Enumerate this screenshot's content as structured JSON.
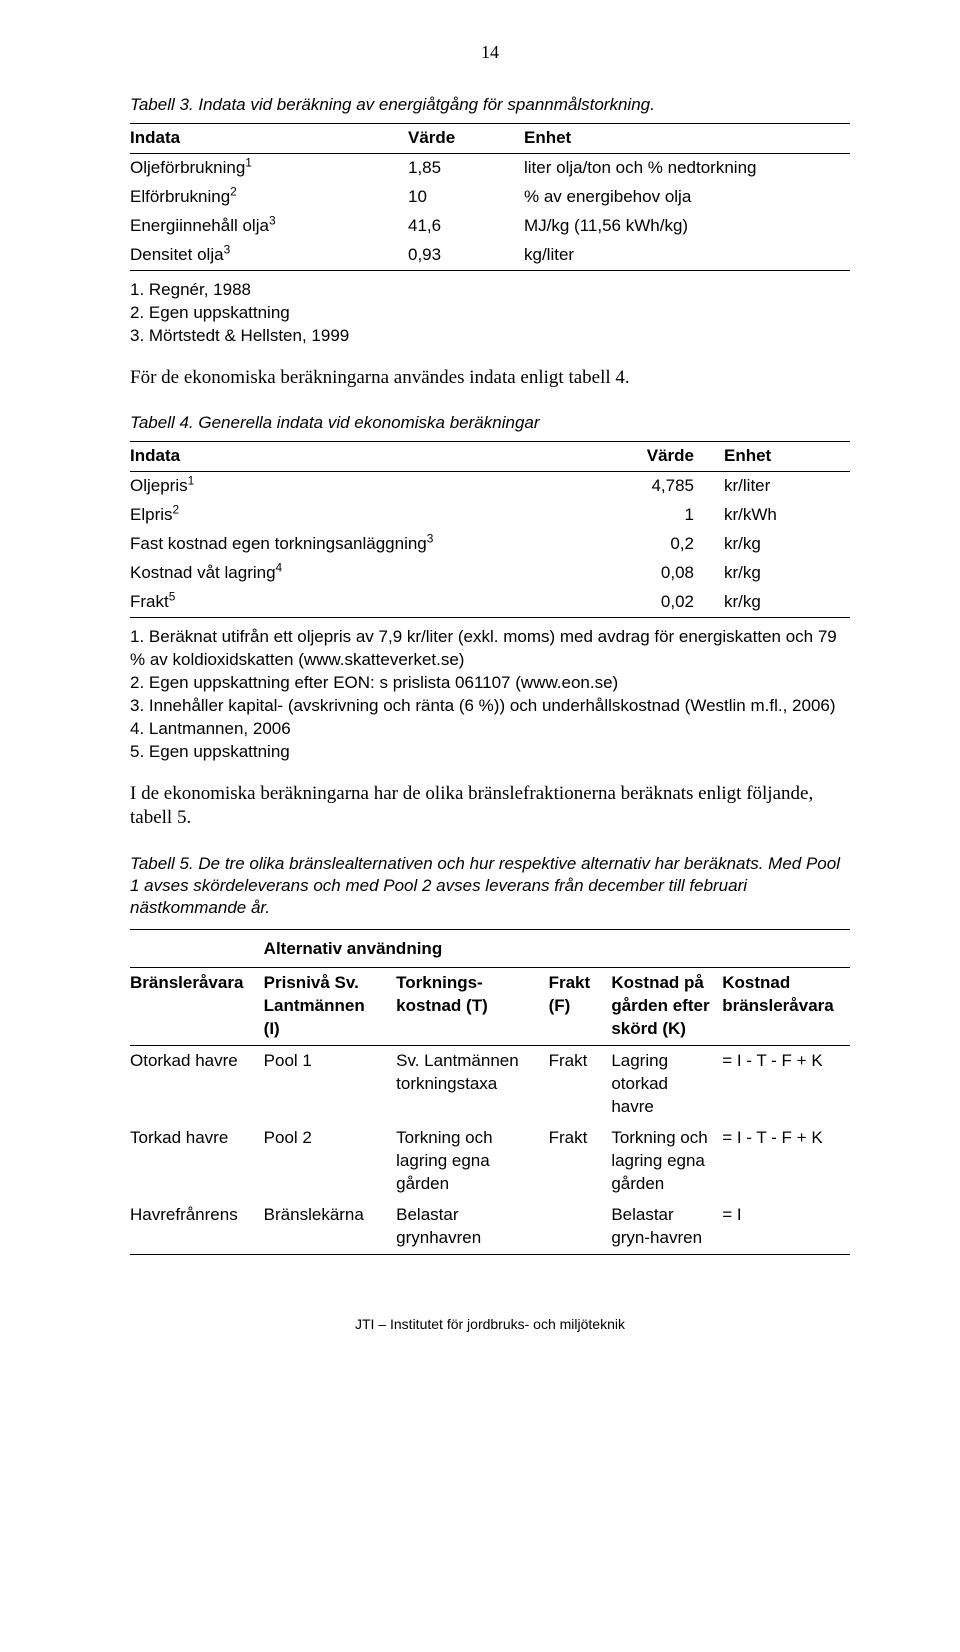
{
  "page_number": "14",
  "table3": {
    "caption": "Tabell 3. Indata vid beräkning av energiåtgång för spannmålstorkning.",
    "headers": [
      "Indata",
      "Värde",
      "Enhet"
    ],
    "rows": [
      {
        "label": "Oljeförbrukning",
        "sup": "1",
        "value": "1,85",
        "unit": "liter olja/ton och % nedtorkning"
      },
      {
        "label": "Elförbrukning",
        "sup": "2",
        "value": "10",
        "unit": "% av energibehov olja"
      },
      {
        "label": "Energiinnehåll olja",
        "sup": "3",
        "value": "41,6",
        "unit": "MJ/kg (11,56 kWh/kg)"
      },
      {
        "label": "Densitet olja",
        "sup": "3",
        "value": "0,93",
        "unit": "kg/liter"
      }
    ],
    "notes": [
      "1. Regnér, 1988",
      "2. Egen uppskattning",
      "3. Mörtstedt & Hellsten, 1999"
    ]
  },
  "para1": "För de ekonomiska beräkningarna användes indata enligt tabell 4.",
  "table4": {
    "caption": "Tabell 4. Generella indata vid ekonomiska beräkningar",
    "headers": [
      "Indata",
      "Värde",
      "Enhet"
    ],
    "rows": [
      {
        "label": "Oljepris",
        "sup": "1",
        "value": "4,785",
        "unit": "kr/liter"
      },
      {
        "label": "Elpris",
        "sup": "2",
        "value": "1",
        "unit": "kr/kWh"
      },
      {
        "label": "Fast kostnad egen torkningsanläggning",
        "sup": "3",
        "value": "0,2",
        "unit": "kr/kg"
      },
      {
        "label": "Kostnad våt lagring",
        "sup": "4",
        "value": "0,08",
        "unit": "kr/kg"
      },
      {
        "label": "Frakt",
        "sup": "5",
        "value": "0,02",
        "unit": "kr/kg"
      }
    ],
    "notes": [
      "1. Beräknat utifrån ett oljepris av 7,9 kr/liter (exkl. moms) med avdrag för energiskatten och 79 % av koldioxidskatten (www.skatteverket.se)",
      "2. Egen uppskattning efter EON: s prislista 061107 (www.eon.se)",
      "3. Innehåller kapital- (avskrivning och ränta (6 %)) och underhållskostnad (Westlin m.fl., 2006)",
      "4. Lantmannen, 2006",
      "5. Egen uppskattning"
    ]
  },
  "para2": "I de ekonomiska beräkningarna har de olika bränslefraktionerna beräknats enligt följande, tabell 5.",
  "table5": {
    "caption": "Tabell 5. De tre olika bränslealternativen och hur respektive alternativ har beräknats. Med Pool 1 avses skördeleverans och med Pool 2 avses leverans från december till februari nästkommande år.",
    "alt_header": "Alternativ användning",
    "headers": [
      "Bränsleråvara",
      "Prisnivå Sv. Lantmännen (I)",
      "Torknings-kostnad (T)",
      "Frakt (F)",
      "Kostnad på gården efter skörd (K)",
      "Kostnad bränsleråvara"
    ],
    "h1": "Bränsleråvara",
    "h2a": "Prisnivå Sv.",
    "h2b": "Lantmännen (I)",
    "h3a": "Torknings-",
    "h3b": "kostnad (T)",
    "h4a": "Frakt",
    "h4b": "(F)",
    "h5a": "Kostnad på",
    "h5b": "gården efter",
    "h5c": "skörd (K)",
    "h6a": "Kostnad",
    "h6b": "bränsleråvara",
    "rows": [
      {
        "c1": "Otorkad havre",
        "c2": "Pool 1",
        "c3": "Sv. Lantmännen torkningstaxa",
        "c4": "Frakt",
        "c5": "Lagring otorkad havre",
        "c6": "= I - T - F + K"
      },
      {
        "c1": "Torkad havre",
        "c2": "Pool 2",
        "c3": "Torkning och lagring egna gården",
        "c4": "Frakt",
        "c5": "Torkning och lagring egna gården",
        "c6": "= I - T - F + K"
      },
      {
        "c1": "Havrefrånrens",
        "c2": "Bränslekärna",
        "c3": "Belastar grynhavren",
        "c4": "",
        "c5": "Belastar gryn-havren",
        "c6": "= I"
      }
    ]
  },
  "footer": "JTI – Institutet för jordbruks- och miljöteknik"
}
